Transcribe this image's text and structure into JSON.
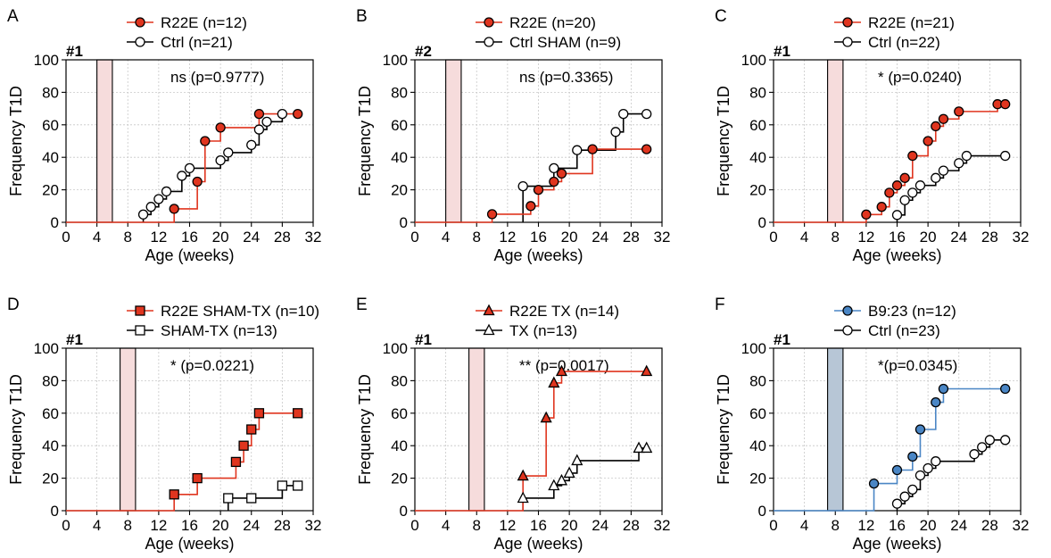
{
  "colors": {
    "red": "#e0351f",
    "blue": "#4a86c5",
    "black": "#000000",
    "shade": "#f6dcdc",
    "shade_blue": "#b7c6d6"
  },
  "chart_data": [
    {
      "type": "line",
      "panel": "A",
      "cohort": "#1",
      "stat": "ns (p=0.9777)",
      "xlabel": "Age (weeks)",
      "ylabel": "Frequency T1D",
      "xlim": [
        0,
        32
      ],
      "ylim": [
        0,
        100
      ],
      "xticks": [
        "0",
        "4",
        "8",
        "12",
        "16",
        "20",
        "24",
        "28",
        "32"
      ],
      "yticks": [
        "0",
        "20",
        "40",
        "60",
        "80",
        "100"
      ],
      "shade": [
        4,
        6
      ],
      "shade_color": "#f6dcdc",
      "series": [
        {
          "name": "R22E (n=12)",
          "color": "#e0351f",
          "marker": "circle",
          "filled": true,
          "x": [
            14,
            17,
            18,
            20,
            25,
            30
          ],
          "y": [
            8.3,
            25,
            50,
            58.3,
            66.7,
            66.7
          ]
        },
        {
          "name": "Ctrl (n=21)",
          "color": "#000000",
          "marker": "circle",
          "filled": false,
          "x": [
            10,
            11,
            12,
            13,
            15,
            16,
            20,
            21,
            24,
            25,
            26,
            28
          ],
          "y": [
            4.8,
            9.5,
            14.3,
            19,
            28.6,
            33.3,
            38.1,
            42.9,
            47.6,
            57.1,
            61.9,
            66.7
          ]
        }
      ]
    },
    {
      "type": "line",
      "panel": "B",
      "cohort": "#2",
      "stat": "ns (p=0.3365)",
      "xlabel": "Age (weeks)",
      "ylabel": "Frequency T1D",
      "xlim": [
        0,
        32
      ],
      "ylim": [
        0,
        100
      ],
      "xticks": [
        "0",
        "4",
        "8",
        "12",
        "16",
        "20",
        "24",
        "28",
        "32"
      ],
      "yticks": [
        "0",
        "20",
        "40",
        "60",
        "80",
        "100"
      ],
      "shade": [
        4,
        6
      ],
      "shade_color": "#f6dcdc",
      "series": [
        {
          "name": "R22E (n=20)",
          "color": "#e0351f",
          "marker": "circle",
          "filled": true,
          "x": [
            10,
            15,
            16,
            18,
            19,
            23,
            30
          ],
          "y": [
            5,
            10,
            20,
            25,
            30,
            45,
            45
          ]
        },
        {
          "name": "Ctrl SHAM (n=9)",
          "color": "#000000",
          "marker": "circle",
          "filled": false,
          "x": [
            14,
            18,
            21,
            26,
            27,
            30
          ],
          "y": [
            22.2,
            33.3,
            44.4,
            55.6,
            66.7,
            66.7
          ]
        }
      ]
    },
    {
      "type": "line",
      "panel": "C",
      "cohort": "#1",
      "stat": "* (p=0.0240)",
      "xlabel": "Age (weeks)",
      "ylabel": "Frequency T1D",
      "xlim": [
        0,
        32
      ],
      "ylim": [
        0,
        100
      ],
      "xticks": [
        "0",
        "4",
        "8",
        "12",
        "16",
        "20",
        "24",
        "28",
        "32"
      ],
      "yticks": [
        "0",
        "20",
        "40",
        "60",
        "80",
        "100"
      ],
      "shade": [
        7,
        9
      ],
      "shade_color": "#f6dcdc",
      "series": [
        {
          "name": "R22E (n=21)",
          "color": "#e0351f",
          "marker": "circle",
          "filled": true,
          "x": [
            12,
            14,
            15,
            16,
            17,
            18,
            20,
            21,
            22,
            24,
            29,
            30
          ],
          "y": [
            4.8,
            9.5,
            18.2,
            22.7,
            27.3,
            40.9,
            50,
            59.1,
            63.6,
            68.2,
            72.7,
            72.7
          ]
        },
        {
          "name": "Ctrl (n=22)",
          "color": "#000000",
          "marker": "circle",
          "filled": false,
          "x": [
            16,
            17,
            18,
            19,
            21,
            22,
            24,
            25,
            30
          ],
          "y": [
            4.5,
            13.6,
            18.2,
            22.7,
            27.3,
            31.8,
            36.4,
            40.9,
            40.9
          ]
        }
      ]
    },
    {
      "type": "line",
      "panel": "D",
      "cohort": "#1",
      "stat": "* (p=0.0221)",
      "xlabel": "Age (weeks)",
      "ylabel": "Frequency T1D",
      "xlim": [
        0,
        32
      ],
      "ylim": [
        0,
        100
      ],
      "xticks": [
        "0",
        "4",
        "8",
        "12",
        "16",
        "20",
        "24",
        "28",
        "32"
      ],
      "yticks": [
        "0",
        "20",
        "40",
        "60",
        "80",
        "100"
      ],
      "shade": [
        7,
        9
      ],
      "shade_color": "#f6dcdc",
      "series": [
        {
          "name": "R22E SHAM-TX (n=10)",
          "color": "#e0351f",
          "marker": "square",
          "filled": true,
          "x": [
            14,
            17,
            22,
            23,
            24,
            25,
            30
          ],
          "y": [
            10,
            20,
            30,
            40,
            50,
            60,
            60
          ]
        },
        {
          "name": "SHAM-TX (n=13)",
          "color": "#000000",
          "marker": "square",
          "filled": false,
          "x": [
            21,
            24,
            28,
            30
          ],
          "y": [
            7.7,
            7.7,
            15.4,
            15.4
          ]
        }
      ]
    },
    {
      "type": "line",
      "panel": "E",
      "cohort": "#1",
      "stat": "** (p=0.0017)",
      "xlabel": "Age (weeks)",
      "ylabel": "Frequency T1D",
      "xlim": [
        0,
        32
      ],
      "ylim": [
        0,
        100
      ],
      "xticks": [
        "0",
        "4",
        "8",
        "12",
        "16",
        "20",
        "24",
        "28",
        "32"
      ],
      "yticks": [
        "0",
        "20",
        "40",
        "60",
        "80",
        "100"
      ],
      "shade": [
        7,
        9
      ],
      "shade_color": "#f6dcdc",
      "series": [
        {
          "name": "R22E TX (n=14)",
          "color": "#e0351f",
          "marker": "triangle",
          "filled": true,
          "x": [
            14,
            17,
            18,
            19,
            30
          ],
          "y": [
            21.4,
            57.1,
            78.6,
            85.7,
            85.7
          ]
        },
        {
          "name": "TX (n=13)",
          "color": "#000000",
          "marker": "triangle",
          "filled": false,
          "x": [
            14,
            18,
            19,
            20,
            21,
            29,
            30
          ],
          "y": [
            7.7,
            15.4,
            18.5,
            23.1,
            30.8,
            38.5,
            38.5
          ]
        }
      ]
    },
    {
      "type": "line",
      "panel": "F",
      "cohort": "#1",
      "stat": "*(p=0.0345)",
      "xlabel": "Age (weeks)",
      "ylabel": "Frequency T1D",
      "xlim": [
        0,
        32
      ],
      "ylim": [
        0,
        100
      ],
      "xticks": [
        "0",
        "4",
        "8",
        "12",
        "16",
        "20",
        "24",
        "28",
        "32"
      ],
      "yticks": [
        "0",
        "20",
        "40",
        "60",
        "80",
        "100"
      ],
      "shade": [
        7,
        9
      ],
      "shade_color": "#b7c6d6",
      "series": [
        {
          "name": "B9:23 (n=12)",
          "color": "#4a86c5",
          "marker": "circle",
          "filled": true,
          "x": [
            13,
            16,
            18,
            19,
            21,
            22,
            30
          ],
          "y": [
            16.7,
            25,
            33.3,
            50,
            66.7,
            75,
            75
          ]
        },
        {
          "name": "Ctrl (n=23)",
          "color": "#000000",
          "marker": "circle",
          "filled": false,
          "x": [
            16,
            17,
            18,
            19,
            20,
            21,
            26,
            27,
            28,
            30
          ],
          "y": [
            4.3,
            8.7,
            13,
            21.7,
            26.1,
            30.4,
            34.8,
            39.1,
            43.5,
            43.5
          ]
        }
      ]
    }
  ]
}
